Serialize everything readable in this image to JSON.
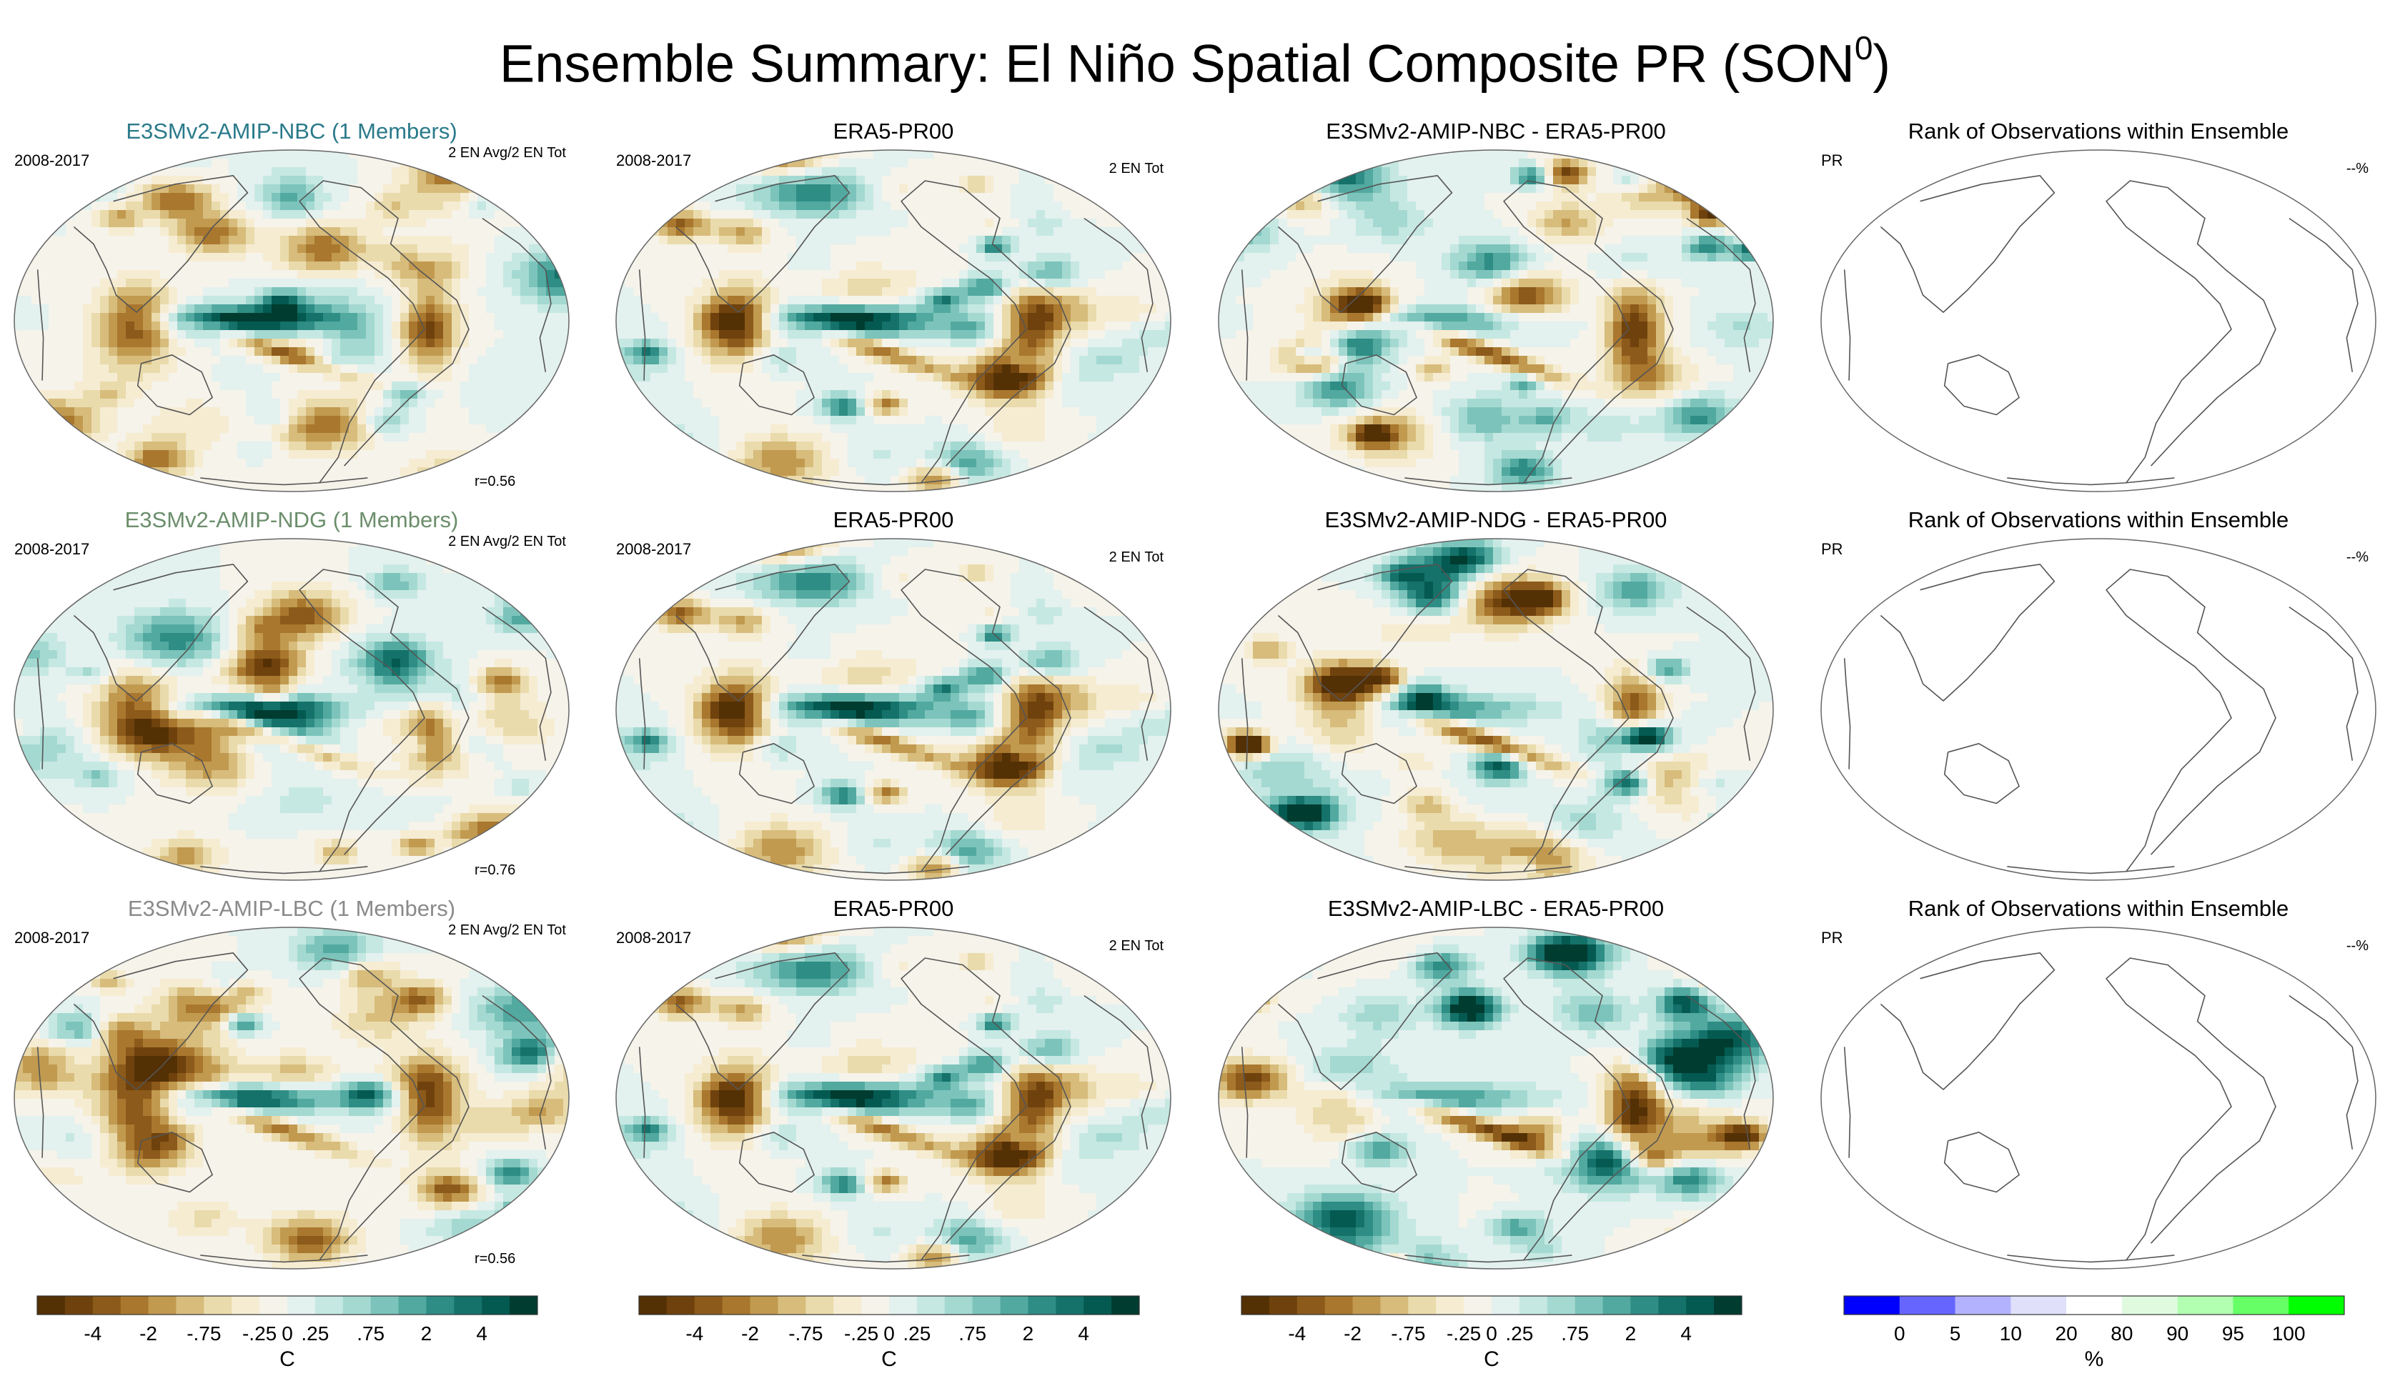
{
  "figure": {
    "title_main": "Ensemble Summary: El Niño Spatial Composite PR (SON",
    "title_sup": "0",
    "title_close": ")"
  },
  "colors": {
    "brown_green_scale": [
      "#543005",
      "#6f420d",
      "#8c5a1a",
      "#a9772e",
      "#c19a50",
      "#d7bc7c",
      "#eadbac",
      "#f6ecd2",
      "#f5f3ea",
      "#e3f1ef",
      "#c6e8e2",
      "#a4d9d1",
      "#7cc4bb",
      "#52a9a0",
      "#2e8d85",
      "#14726a",
      "#045a51",
      "#003c30"
    ],
    "rank_scale": [
      "#0000ff",
      "#6666ff",
      "#b2b2ff",
      "#e0e0fa",
      "#ffffff",
      "#e0fae0",
      "#b2ffb2",
      "#66ff66",
      "#00ff00"
    ],
    "title_nbc": "#2a7a8a",
    "title_ndg": "#6b8e6b",
    "title_lbc": "#8a8a8a"
  },
  "chart_data": [
    {
      "type": "heatmap",
      "row": 0,
      "col": 0,
      "title": "E3SMv2-AMIP-NBC (1 Members)",
      "title_color": "#2a7a8a",
      "left": "2008-2017",
      "right": "2 EN Avg/2 EN Tot",
      "corr": "r=0.56",
      "pattern": "model1"
    },
    {
      "type": "heatmap",
      "row": 0,
      "col": 1,
      "title": "ERA5-PR00",
      "left": "2008-2017",
      "right": "2 EN Tot",
      "pattern": "obs"
    },
    {
      "type": "heatmap",
      "row": 0,
      "col": 2,
      "title": "E3SMv2-AMIP-NBC - ERA5-PR00",
      "left": "",
      "right": "",
      "pattern": "diff1"
    },
    {
      "type": "heatmap",
      "row": 0,
      "col": 3,
      "title": "Rank of Observations within Ensemble",
      "left": "PR",
      "right": "--%",
      "pattern": "blank"
    },
    {
      "type": "heatmap",
      "row": 1,
      "col": 0,
      "title": "E3SMv2-AMIP-NDG (1 Members)",
      "title_color": "#6b8e6b",
      "left": "2008-2017",
      "right": "2 EN Avg/2 EN Tot",
      "corr": "r=0.76",
      "pattern": "model2"
    },
    {
      "type": "heatmap",
      "row": 1,
      "col": 1,
      "title": "ERA5-PR00",
      "left": "2008-2017",
      "right": "2 EN Tot",
      "pattern": "obs"
    },
    {
      "type": "heatmap",
      "row": 1,
      "col": 2,
      "title": "E3SMv2-AMIP-NDG - ERA5-PR00",
      "left": "",
      "right": "",
      "pattern": "diff2"
    },
    {
      "type": "heatmap",
      "row": 1,
      "col": 3,
      "title": "Rank of Observations within Ensemble",
      "left": "PR",
      "right": "--%",
      "pattern": "blank"
    },
    {
      "type": "heatmap",
      "row": 2,
      "col": 0,
      "title": "E3SMv2-AMIP-LBC (1 Members)",
      "title_color": "#8a8a8a",
      "left": "2008-2017",
      "right": "2 EN Avg/2 EN Tot",
      "corr": "r=0.56",
      "pattern": "model3"
    },
    {
      "type": "heatmap",
      "row": 2,
      "col": 1,
      "title": "ERA5-PR00",
      "left": "2008-2017",
      "right": "2 EN Tot",
      "pattern": "obs"
    },
    {
      "type": "heatmap",
      "row": 2,
      "col": 2,
      "title": "E3SMv2-AMIP-LBC - ERA5-PR00",
      "left": "",
      "right": "",
      "pattern": "diff3"
    },
    {
      "type": "heatmap",
      "row": 2,
      "col": 3,
      "title": "Rank of Observations within Ensemble",
      "left": "PR",
      "right": "--%",
      "pattern": "blank"
    }
  ],
  "colorbars": [
    {
      "col": 0,
      "palette": "brown_green_scale",
      "tick_labels": [
        "-4",
        "-2",
        "-.75",
        "-.25",
        "0",
        ".25",
        ".75",
        "2",
        "4"
      ],
      "tick_boundaries": [
        2,
        4,
        6,
        8,
        9,
        10,
        12,
        14,
        16
      ],
      "unit": "C"
    },
    {
      "col": 1,
      "palette": "brown_green_scale",
      "tick_labels": [
        "-4",
        "-2",
        "-.75",
        "-.25",
        "0",
        ".25",
        ".75",
        "2",
        "4"
      ],
      "tick_boundaries": [
        2,
        4,
        6,
        8,
        9,
        10,
        12,
        14,
        16
      ],
      "unit": "C"
    },
    {
      "col": 2,
      "palette": "brown_green_scale",
      "tick_labels": [
        "-4",
        "-2",
        "-.75",
        "-.25",
        "0",
        ".25",
        ".75",
        "2",
        "4"
      ],
      "tick_boundaries": [
        2,
        4,
        6,
        8,
        9,
        10,
        12,
        14,
        16
      ],
      "unit": "C"
    },
    {
      "col": 3,
      "palette": "rank_scale",
      "tick_labels": [
        "0",
        "5",
        "10",
        "20",
        "80",
        "90",
        "95",
        "100"
      ],
      "tick_boundaries": [
        1,
        2,
        3,
        4,
        5,
        6,
        7,
        8
      ],
      "unit": "%"
    }
  ]
}
